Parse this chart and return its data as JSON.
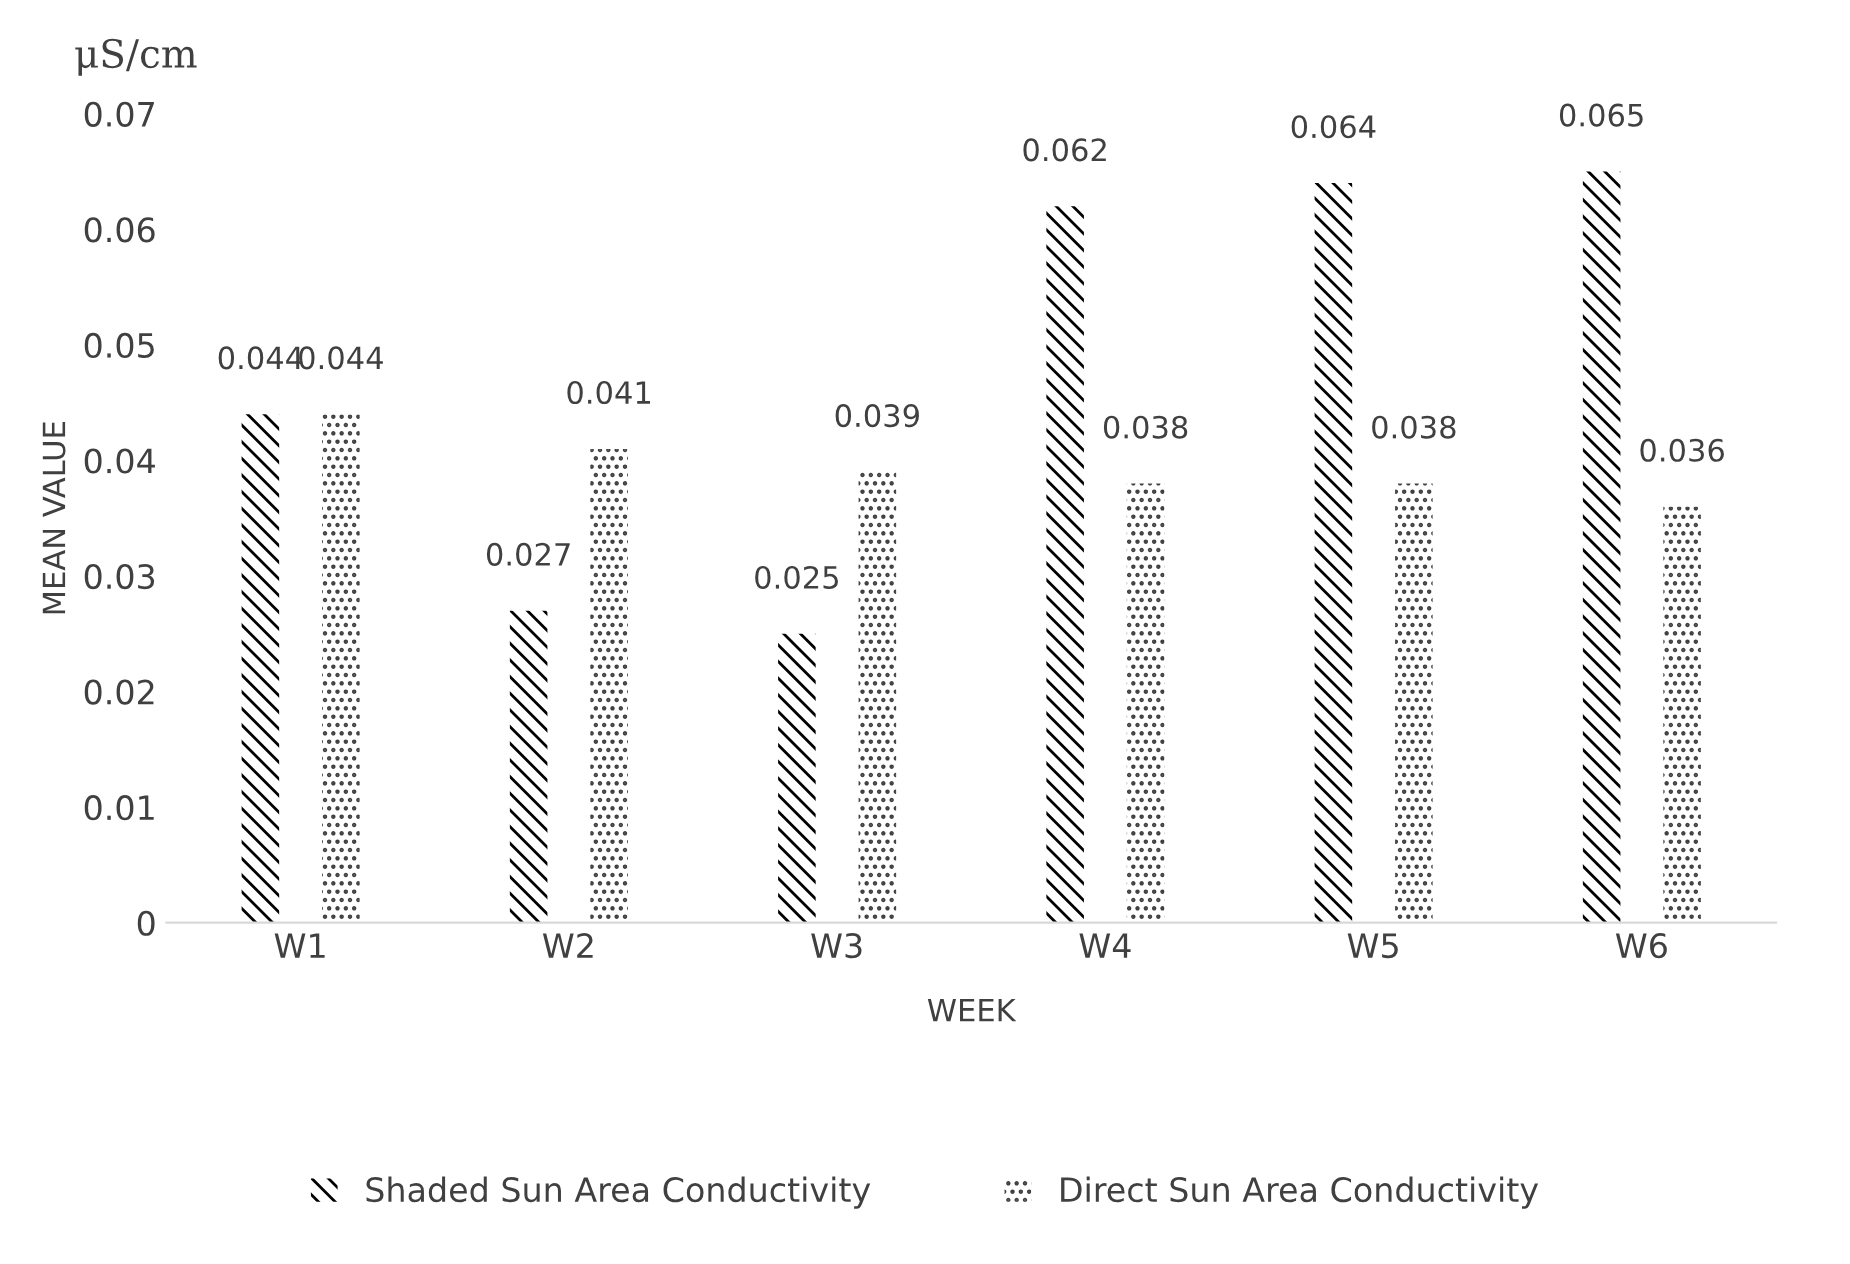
{
  "chart_data": {
    "type": "bar",
    "xlabel": "WEEK",
    "ylabel": "MEAN VALUE",
    "annotations": [
      "μS/cm"
    ],
    "categories": [
      "W1",
      "W2",
      "W3",
      "W4",
      "W5",
      "W6"
    ],
    "series": [
      {
        "name": "Shaded Sun Area Conductivity",
        "color": "#000000",
        "values": [
          0.044,
          0.027,
          0.025,
          0.062,
          0.064,
          0.065
        ]
      },
      {
        "name": "Direct Sun Area Conductivity",
        "color": "#404040",
        "values": [
          0.044,
          0.041,
          0.039,
          0.038,
          0.038,
          0.036
        ]
      }
    ],
    "ylim": [
      0,
      0.07
    ],
    "yticks": [
      {
        "value": 0,
        "label": "0"
      },
      0.01,
      0.02,
      0.03,
      0.04,
      0.05,
      0.06,
      0.07
    ],
    "data_labels": true,
    "legend": "bottom",
    "grid": false
  }
}
